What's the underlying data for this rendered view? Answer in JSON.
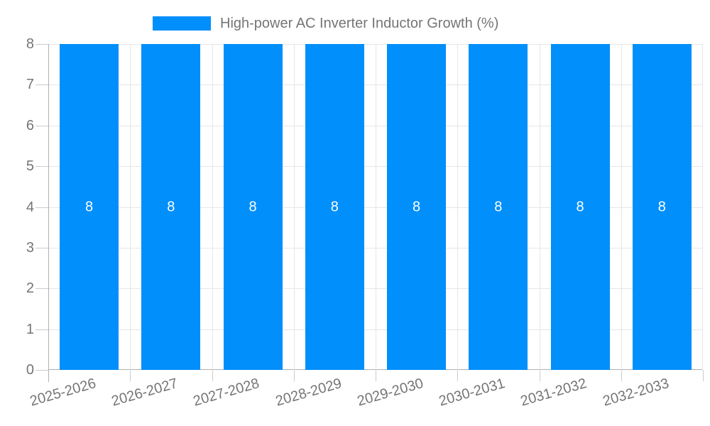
{
  "chart_data": {
    "type": "bar",
    "title": "High-power AC Inverter Inductor Growth (%)",
    "legend": {
      "position": "top",
      "entries": [
        {
          "label": "High-power AC Inverter Inductor Growth (%)",
          "color": "#008FFB"
        }
      ]
    },
    "categories": [
      "2025-2026",
      "2026-2027",
      "2027-2028",
      "2028-2029",
      "2029-2030",
      "2030-2031",
      "2031-2032",
      "2032-2033"
    ],
    "values": [
      8,
      8,
      8,
      8,
      8,
      8,
      8,
      8
    ],
    "value_label_color": "#ffffff",
    "xlabel": "",
    "ylabel": "",
    "ylim": [
      0,
      8
    ],
    "yticks": [
      0,
      1,
      2,
      3,
      4,
      5,
      6,
      7,
      8
    ],
    "grid": "horizontal and vertical category boundaries, on",
    "x_label_rotation_deg": -16,
    "colors": {
      "bar": "#008FFB",
      "grid": "#e6e6e6",
      "axis": "#b1b1b1",
      "tick": "#cccccc",
      "label": "#757575",
      "title": "#757575",
      "background": "#ffffff"
    }
  }
}
